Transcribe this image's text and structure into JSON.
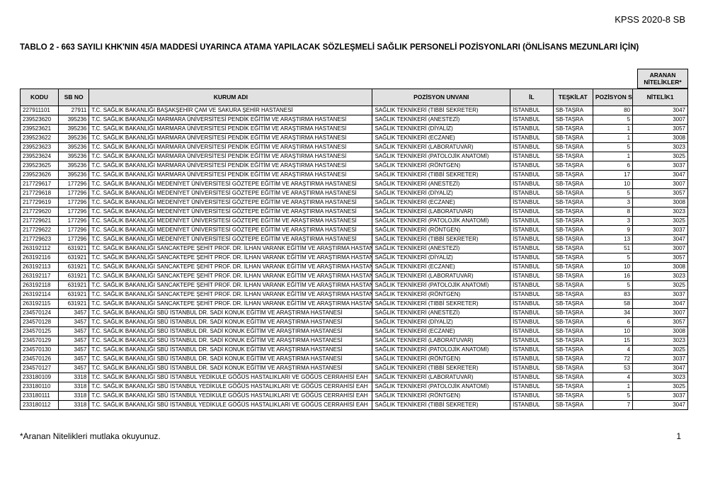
{
  "header": {
    "right": "KPSS 2020-8 SB"
  },
  "title": "TABLO 2 - 663 SAYILI KHK'NIN 45/A MADDESİ UYARINCA ATAMA YAPILACAK SÖZLEŞMELİ SAĞLIK PERSONELİ POZİSYONLARI (ÖNLİSANS MEZUNLARI İÇİN)",
  "group_header": "ARANAN NİTELİKLER*",
  "columns": [
    "KODU",
    "SB NO",
    "KURUM ADI",
    "POZİSYON UNVANI",
    "İL",
    "TEŞKİLAT",
    "POZİSYON SAYISI",
    "NİTELİK1"
  ],
  "rows": [
    [
      "227911101",
      "27911",
      "T.C. SAĞLIK BAKANLIĞI BAŞAKŞEHİR ÇAM VE SAKURA ŞEHİR HASTANESİ",
      "SAĞLIK TEKNİKERİ (TIBBİ SEKRETER)",
      "İSTANBUL",
      "SB-TAŞRA",
      "80",
      "3047"
    ],
    [
      "239523620",
      "395236",
      "T.C. SAĞLIK BAKANLIĞI MARMARA ÜNİVERSİTESİ PENDİK EĞİTİM VE ARAŞTIRMA HASTANESİ",
      "SAĞLIK TEKNİKERİ (ANESTEZİ)",
      "İSTANBUL",
      "SB-TAŞRA",
      "5",
      "3007"
    ],
    [
      "239523621",
      "395236",
      "T.C. SAĞLIK BAKANLIĞI MARMARA ÜNİVERSİTESİ PENDİK EĞİTİM VE ARAŞTIRMA HASTANESİ",
      "SAĞLIK TEKNİKERİ (DİYALİZ)",
      "İSTANBUL",
      "SB-TAŞRA",
      "1",
      "3057"
    ],
    [
      "239523622",
      "395236",
      "T.C. SAĞLIK BAKANLIĞI MARMARA ÜNİVERSİTESİ PENDİK EĞİTİM VE ARAŞTIRMA HASTANESİ",
      "SAĞLIK TEKNİKERİ (ECZANE)",
      "İSTANBUL",
      "SB-TAŞRA",
      "1",
      "3008"
    ],
    [
      "239523623",
      "395236",
      "T.C. SAĞLIK BAKANLIĞI MARMARA ÜNİVERSİTESİ PENDİK EĞİTİM VE ARAŞTIRMA HASTANESİ",
      "SAĞLIK TEKNİKERİ (LABORATUVAR)",
      "İSTANBUL",
      "SB-TAŞRA",
      "5",
      "3023"
    ],
    [
      "239523624",
      "395236",
      "T.C. SAĞLIK BAKANLIĞI MARMARA ÜNİVERSİTESİ PENDİK EĞİTİM VE ARAŞTIRMA HASTANESİ",
      "SAĞLIK TEKNİKERİ (PATOLOJİK ANATOMİ)",
      "İSTANBUL",
      "SB-TAŞRA",
      "1",
      "3025"
    ],
    [
      "239523625",
      "395236",
      "T.C. SAĞLIK BAKANLIĞI MARMARA ÜNİVERSİTESİ PENDİK EĞİTİM VE ARAŞTIRMA HASTANESİ",
      "SAĞLIK TEKNİKERİ (RÖNTGEN)",
      "İSTANBUL",
      "SB-TAŞRA",
      "6",
      "3037"
    ],
    [
      "239523626",
      "395236",
      "T.C. SAĞLIK BAKANLIĞI MARMARA ÜNİVERSİTESİ PENDİK EĞİTİM VE ARAŞTIRMA HASTANESİ",
      "SAĞLIK TEKNİKERİ (TIBBİ SEKRETER)",
      "İSTANBUL",
      "SB-TAŞRA",
      "17",
      "3047"
    ],
    [
      "217729617",
      "177296",
      "T.C. SAĞLIK BAKANLIĞI MEDENİYET ÜNİVERSİTESİ GÖZTEPE EĞİTİM VE ARAŞTIRMA HASTANESİ",
      "SAĞLIK TEKNİKERİ (ANESTEZİ)",
      "İSTANBUL",
      "SB-TAŞRA",
      "10",
      "3007"
    ],
    [
      "217729618",
      "177296",
      "T.C. SAĞLIK BAKANLIĞI MEDENİYET ÜNİVERSİTESİ GÖZTEPE EĞİTİM VE ARAŞTIRMA HASTANESİ",
      "SAĞLIK TEKNİKERİ (DİYALİZ)",
      "İSTANBUL",
      "SB-TAŞRA",
      "5",
      "3057"
    ],
    [
      "217729619",
      "177296",
      "T.C. SAĞLIK BAKANLIĞI MEDENİYET ÜNİVERSİTESİ GÖZTEPE EĞİTİM VE ARAŞTIRMA HASTANESİ",
      "SAĞLIK TEKNİKERİ (ECZANE)",
      "İSTANBUL",
      "SB-TAŞRA",
      "3",
      "3008"
    ],
    [
      "217729620",
      "177296",
      "T.C. SAĞLIK BAKANLIĞI MEDENİYET ÜNİVERSİTESİ GÖZTEPE EĞİTİM VE ARAŞTIRMA HASTANESİ",
      "SAĞLIK TEKNİKERİ (LABORATUVAR)",
      "İSTANBUL",
      "SB-TAŞRA",
      "8",
      "3023"
    ],
    [
      "217729621",
      "177296",
      "T.C. SAĞLIK BAKANLIĞI MEDENİYET ÜNİVERSİTESİ GÖZTEPE EĞİTİM VE ARAŞTIRMA HASTANESİ",
      "SAĞLIK TEKNİKERİ (PATOLOJİK ANATOMİ)",
      "İSTANBUL",
      "SB-TAŞRA",
      "3",
      "3025"
    ],
    [
      "217729622",
      "177296",
      "T.C. SAĞLIK BAKANLIĞI MEDENİYET ÜNİVERSİTESİ GÖZTEPE EĞİTİM VE ARAŞTIRMA HASTANESİ",
      "SAĞLIK TEKNİKERİ (RÖNTGEN)",
      "İSTANBUL",
      "SB-TAŞRA",
      "9",
      "3037"
    ],
    [
      "217729623",
      "177296",
      "T.C. SAĞLIK BAKANLIĞI MEDENİYET ÜNİVERSİTESİ GÖZTEPE EĞİTİM VE ARAŞTIRMA HASTANESİ",
      "SAĞLIK TEKNİKERİ (TIBBİ SEKRETER)",
      "İSTANBUL",
      "SB-TAŞRA",
      "13",
      "3047"
    ],
    [
      "263192112",
      "631921",
      "T.C. SAĞLIK BAKANLIĞI SANCAKTEPE ŞEHİT PROF. DR. İLHAN VARANK EĞİTİM VE ARAŞTIRMA HASTANESİ",
      "SAĞLIK TEKNİKERİ (ANESTEZİ)",
      "İSTANBUL",
      "SB-TAŞRA",
      "51",
      "3007"
    ],
    [
      "263192116",
      "631921",
      "T.C. SAĞLIK BAKANLIĞI SANCAKTEPE ŞEHİT PROF. DR. İLHAN VARANK EĞİTİM VE ARAŞTIRMA HASTANESİ",
      "SAĞLIK TEKNİKERİ (DİYALİZ)",
      "İSTANBUL",
      "SB-TAŞRA",
      "5",
      "3057"
    ],
    [
      "263192113",
      "631921",
      "T.C. SAĞLIK BAKANLIĞI SANCAKTEPE ŞEHİT PROF. DR. İLHAN VARANK EĞİTİM VE ARAŞTIRMA HASTANESİ",
      "SAĞLIK TEKNİKERİ (ECZANE)",
      "İSTANBUL",
      "SB-TAŞRA",
      "10",
      "3008"
    ],
    [
      "263192117",
      "631921",
      "T.C. SAĞLIK BAKANLIĞI SANCAKTEPE ŞEHİT PROF. DR. İLHAN VARANK EĞİTİM VE ARAŞTIRMA HASTANESİ",
      "SAĞLIK TEKNİKERİ (LABORATUVAR)",
      "İSTANBUL",
      "SB-TAŞRA",
      "16",
      "3023"
    ],
    [
      "263192118",
      "631921",
      "T.C. SAĞLIK BAKANLIĞI SANCAKTEPE ŞEHİT PROF. DR. İLHAN VARANK EĞİTİM VE ARAŞTIRMA HASTANESİ",
      "SAĞLIK TEKNİKERİ (PATOLOJİK ANATOMİ)",
      "İSTANBUL",
      "SB-TAŞRA",
      "5",
      "3025"
    ],
    [
      "263192114",
      "631921",
      "T.C. SAĞLIK BAKANLIĞI SANCAKTEPE ŞEHİT PROF. DR. İLHAN VARANK EĞİTİM VE ARAŞTIRMA HASTANESİ",
      "SAĞLIK TEKNİKERİ (RÖNTGEN)",
      "İSTANBUL",
      "SB-TAŞRA",
      "83",
      "3037"
    ],
    [
      "263192115",
      "631921",
      "T.C. SAĞLIK BAKANLIĞI SANCAKTEPE ŞEHİT PROF. DR. İLHAN VARANK EĞİTİM VE ARAŞTIRMA HASTANESİ",
      "SAĞLIK TEKNİKERİ (TIBBİ SEKRETER)",
      "İSTANBUL",
      "SB-TAŞRA",
      "58",
      "3047"
    ],
    [
      "234570124",
      "3457",
      "T.C. SAĞLIK BAKANLIĞI SBÜ İSTANBUL DR. SADİ KONUK EĞİTİM VE ARAŞTIRMA HASTANESİ",
      "SAĞLIK TEKNİKERİ (ANESTEZİ)",
      "İSTANBUL",
      "SB-TAŞRA",
      "34",
      "3007"
    ],
    [
      "234570128",
      "3457",
      "T.C. SAĞLIK BAKANLIĞI SBÜ İSTANBUL DR. SADİ KONUK EĞİTİM VE ARAŞTIRMA HASTANESİ",
      "SAĞLIK TEKNİKERİ (DİYALİZ)",
      "İSTANBUL",
      "SB-TAŞRA",
      "6",
      "3057"
    ],
    [
      "234570125",
      "3457",
      "T.C. SAĞLIK BAKANLIĞI SBÜ İSTANBUL DR. SADİ KONUK EĞİTİM VE ARAŞTIRMA HASTANESİ",
      "SAĞLIK TEKNİKERİ (ECZANE)",
      "İSTANBUL",
      "SB-TAŞRA",
      "10",
      "3008"
    ],
    [
      "234570129",
      "3457",
      "T.C. SAĞLIK BAKANLIĞI SBÜ İSTANBUL DR. SADİ KONUK EĞİTİM VE ARAŞTIRMA HASTANESİ",
      "SAĞLIK TEKNİKERİ (LABORATUVAR)",
      "İSTANBUL",
      "SB-TAŞRA",
      "15",
      "3023"
    ],
    [
      "234570130",
      "3457",
      "T.C. SAĞLIK BAKANLIĞI SBÜ İSTANBUL DR. SADİ KONUK EĞİTİM VE ARAŞTIRMA HASTANESİ",
      "SAĞLIK TEKNİKERİ (PATOLOJİK ANATOMİ)",
      "İSTANBUL",
      "SB-TAŞRA",
      "4",
      "3025"
    ],
    [
      "234570126",
      "3457",
      "T.C. SAĞLIK BAKANLIĞI SBÜ İSTANBUL DR. SADİ KONUK EĞİTİM VE ARAŞTIRMA HASTANESİ",
      "SAĞLIK TEKNİKERİ (RÖNTGEN)",
      "İSTANBUL",
      "SB-TAŞRA",
      "72",
      "3037"
    ],
    [
      "234570127",
      "3457",
      "T.C. SAĞLIK BAKANLIĞI SBÜ İSTANBUL DR. SADİ KONUK EĞİTİM VE ARAŞTIRMA HASTANESİ",
      "SAĞLIK TEKNİKERİ (TIBBİ SEKRETER)",
      "İSTANBUL",
      "SB-TAŞRA",
      "53",
      "3047"
    ],
    [
      "233180109",
      "3318",
      "T.C. SAĞLIK BAKANLIĞI SBÜ İSTANBUL YEDİKULE GÖĞÜS HASTALIKLARI VE GÖĞÜS CERRAHİSİ EAH",
      "SAĞLIK TEKNİKERİ (LABORATUVAR)",
      "İSTANBUL",
      "SB-TAŞRA",
      "4",
      "3023"
    ],
    [
      "233180110",
      "3318",
      "T.C. SAĞLIK BAKANLIĞI SBÜ İSTANBUL YEDİKULE GÖĞÜS HASTALIKLARI VE GÖĞÜS CERRAHİSİ EAH",
      "SAĞLIK TEKNİKERİ (PATOLOJİK ANATOMİ)",
      "İSTANBUL",
      "SB-TAŞRA",
      "1",
      "3025"
    ],
    [
      "233180111",
      "3318",
      "T.C. SAĞLIK BAKANLIĞI SBÜ İSTANBUL YEDİKULE GÖĞÜS HASTALIKLARI VE GÖĞÜS CERRAHİSİ EAH",
      "SAĞLIK TEKNİKERİ (RÖNTGEN)",
      "İSTANBUL",
      "SB-TAŞRA",
      "5",
      "3037"
    ],
    [
      "233180112",
      "3318",
      "T.C. SAĞLIK BAKANLIĞI SBÜ İSTANBUL YEDİKULE GÖĞÜS HASTALIKLARI VE GÖĞÜS CERRAHİSİ EAH",
      "SAĞLIK TEKNİKERİ (TIBBİ SEKRETER)",
      "İSTANBUL",
      "SB-TAŞRA",
      "7",
      "3047"
    ]
  ],
  "footer": {
    "note": "*Aranan Nitelikleri mutlaka okuyunuz.",
    "page": "1"
  },
  "style": {
    "header_bg": "#e1e1e1",
    "border_color": "#000000",
    "page_bg": "#ffffff",
    "font_family": "Arial, sans-serif",
    "body_font_size": 8,
    "title_font_size": 11.5,
    "header_right_font_size": 13
  }
}
